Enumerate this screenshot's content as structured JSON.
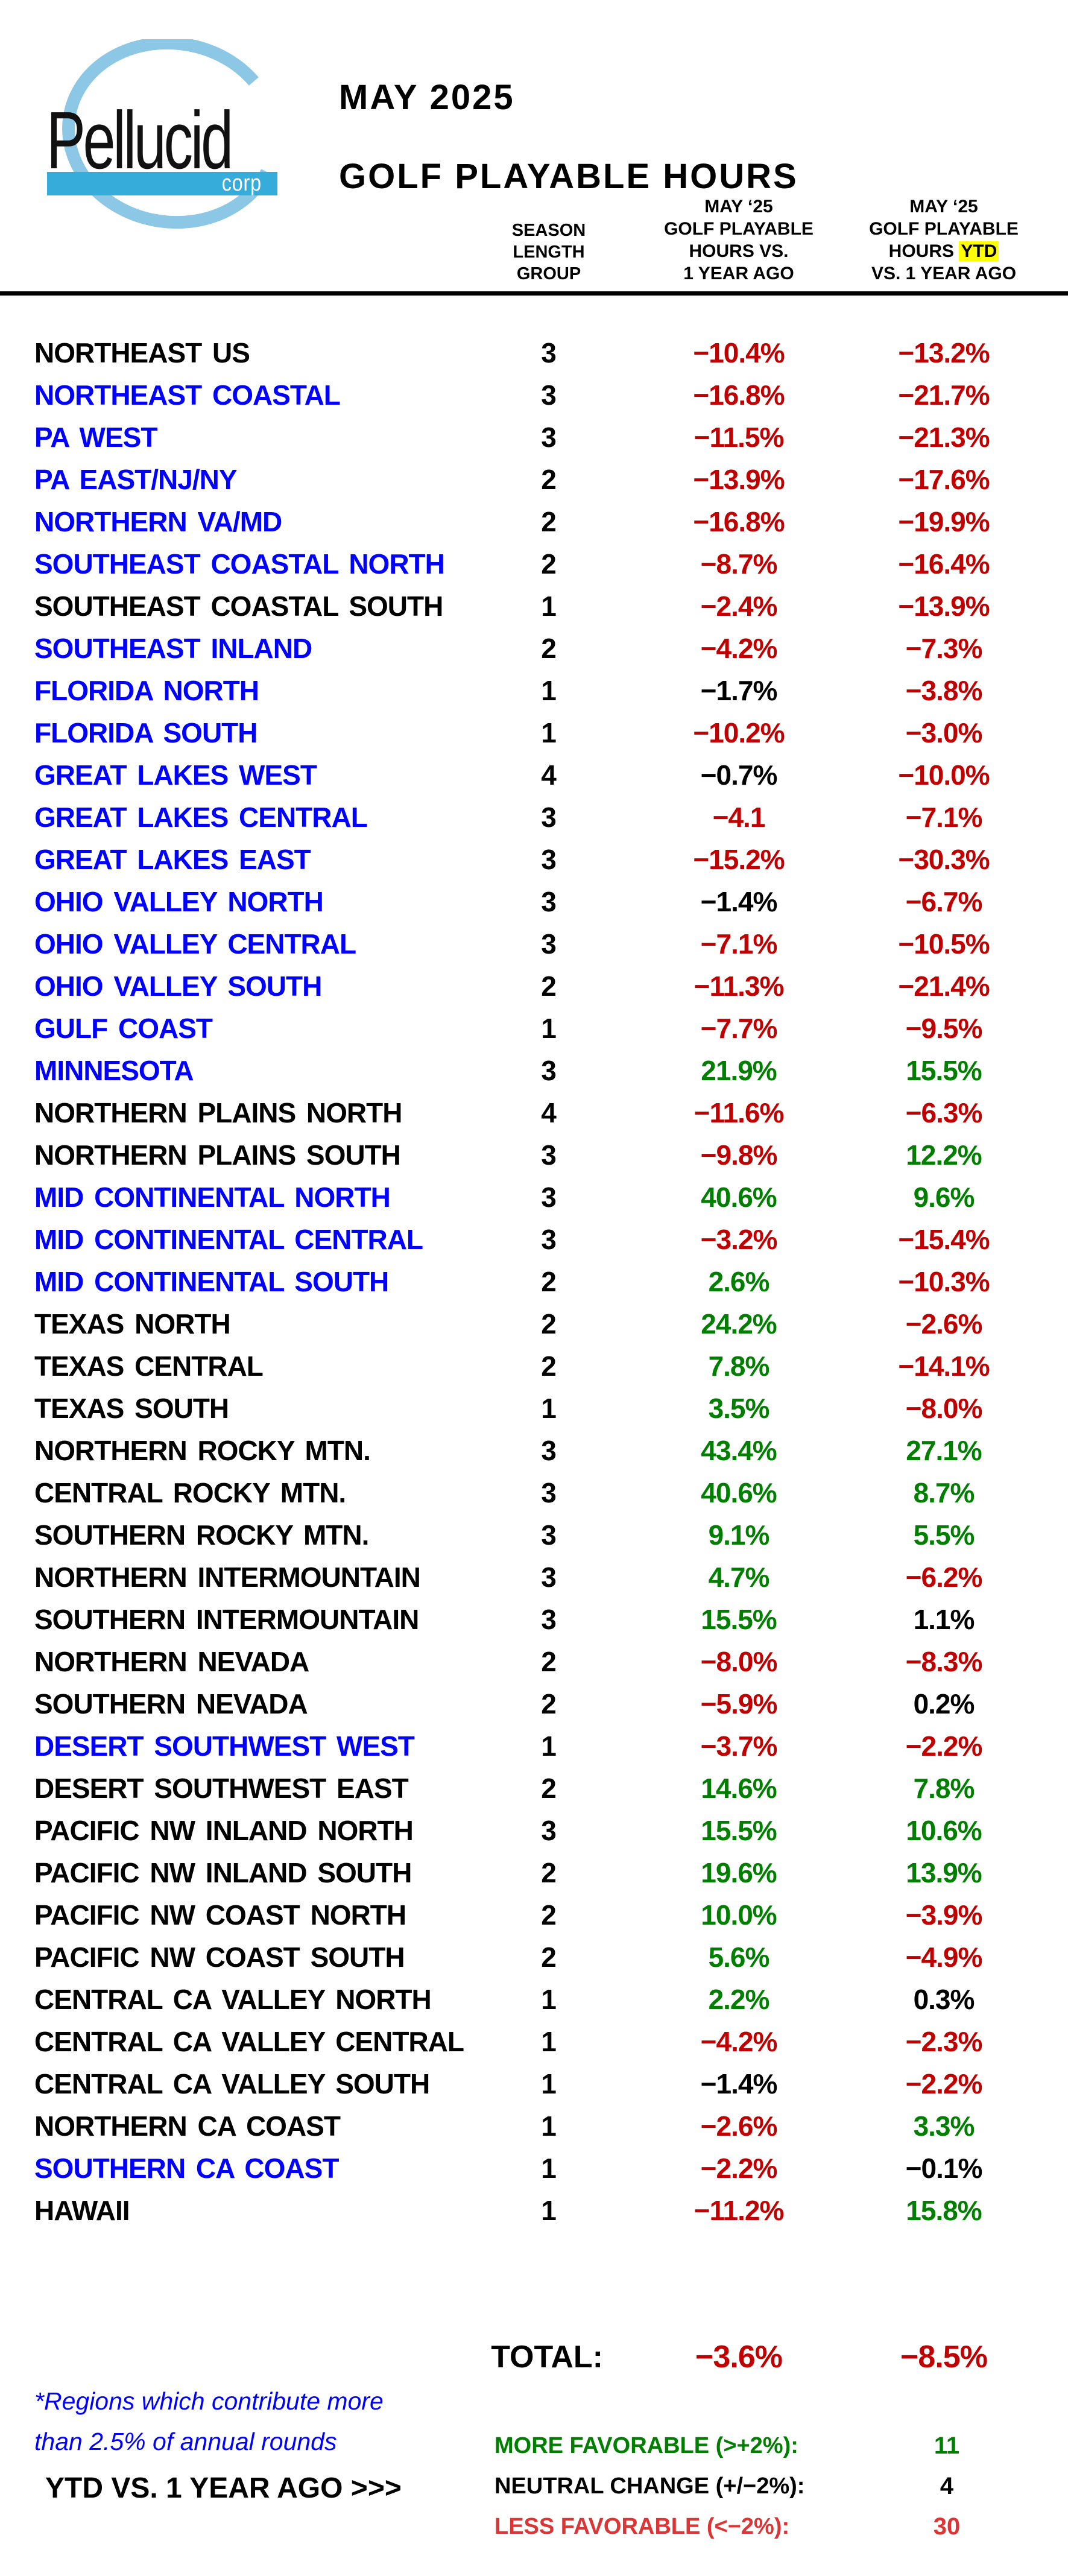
{
  "logo": {
    "brand": "Pellucid",
    "suffix": "corp"
  },
  "title": {
    "line1": "MAY 2025",
    "line2": "GOLF PLAYABLE HOURS"
  },
  "headers": {
    "season": [
      "SEASON",
      "LENGTH",
      "GROUP"
    ],
    "col1": [
      "MAY ‘25",
      "GOLF PLAYABLE",
      "HOURS VS.",
      "1 YEAR AGO"
    ],
    "col2_line1": "MAY ‘25",
    "col2_line2": "GOLF PLAYABLE",
    "col2_line3_pre": "HOURS ",
    "col2_line3_highlight": "YTD",
    "col2_line4": "VS. 1 YEAR AGO"
  },
  "colors": {
    "favorable_green": "#007E00",
    "unfavorable_red": "#C00000",
    "neutral_black": "#000000",
    "region_blue": "#0000FF",
    "legend_red": "#DB3535",
    "logo_bar_blue": "#35ACDA",
    "logo_ring_blue": "#8CC7E6",
    "ytd_highlight_yellow": "#FFFF00"
  },
  "table": {
    "rows": [
      {
        "region": "NORTHEAST  US",
        "blue": false,
        "group": "3",
        "mv": "−10.4%",
        "mc": "r",
        "yv": "−13.2%",
        "yc": "r"
      },
      {
        "region": "NORTHEAST COASTAL",
        "blue": true,
        "group": "3",
        "mv": "−16.8%",
        "mc": "r",
        "yv": "−21.7%",
        "yc": "r"
      },
      {
        "region": "PA WEST",
        "blue": true,
        "group": "3",
        "mv": "−11.5%",
        "mc": "r",
        "yv": "−21.3%",
        "yc": "r"
      },
      {
        "region": "PA EAST/NJ/NY",
        "blue": true,
        "group": "2",
        "mv": "−13.9%",
        "mc": "r",
        "yv": "−17.6%",
        "yc": "r"
      },
      {
        "region": "NORTHERN VA/MD",
        "blue": true,
        "group": "2",
        "mv": "−16.8%",
        "mc": "r",
        "yv": "−19.9%",
        "yc": "r"
      },
      {
        "region": "SOUTHEAST COASTAL NORTH",
        "blue": true,
        "group": "2",
        "mv": "−8.7%",
        "mc": "r",
        "yv": "−16.4%",
        "yc": "r"
      },
      {
        "region": "SOUTHEAST COASTAL SOUTH",
        "blue": false,
        "group": "1",
        "mv": "−2.4%",
        "mc": "r",
        "yv": "−13.9%",
        "yc": "r"
      },
      {
        "region": "SOUTHEAST INLAND",
        "blue": true,
        "group": "2",
        "mv": "−4.2%",
        "mc": "r",
        "yv": "−7.3%",
        "yc": "r"
      },
      {
        "region": "FLORIDA NORTH",
        "blue": true,
        "group": "1",
        "mv": "−1.7%",
        "mc": "k",
        "yv": "−3.8%",
        "yc": "r"
      },
      {
        "region": "FLORIDA SOUTH",
        "blue": true,
        "group": "1",
        "mv": "−10.2%",
        "mc": "r",
        "yv": "−3.0%",
        "yc": "r"
      },
      {
        "region": "GREAT LAKES WEST",
        "blue": true,
        "group": "4",
        "mv": "−0.7%",
        "mc": "k",
        "yv": "−10.0%",
        "yc": "r"
      },
      {
        "region": "GREAT LAKES CENTRAL",
        "blue": true,
        "group": "3",
        "mv": "−4.1",
        "mc": "r",
        "yv": "−7.1%",
        "yc": "r"
      },
      {
        "region": "GREAT LAKES EAST",
        "blue": true,
        "group": "3",
        "mv": "−15.2%",
        "mc": "r",
        "yv": "−30.3%",
        "yc": "r"
      },
      {
        "region": "OHIO VALLEY NORTH",
        "blue": true,
        "group": "3",
        "mv": "−1.4%",
        "mc": "k",
        "yv": "−6.7%",
        "yc": "r"
      },
      {
        "region": "OHIO VALLEY CENTRAL",
        "blue": true,
        "group": "3",
        "mv": "−7.1%",
        "mc": "r",
        "yv": "−10.5%",
        "yc": "r"
      },
      {
        "region": "OHIO VALLEY SOUTH",
        "blue": true,
        "group": "2",
        "mv": "−11.3%",
        "mc": "r",
        "yv": "−21.4%",
        "yc": "r"
      },
      {
        "region": "GULF COAST",
        "blue": true,
        "group": "1",
        "mv": "−7.7%",
        "mc": "r",
        "yv": "−9.5%",
        "yc": "r"
      },
      {
        "region": "MINNESOTA",
        "blue": true,
        "group": "3",
        "mv": "21.9%",
        "mc": "g",
        "yv": "15.5%",
        "yc": "g"
      },
      {
        "region": "NORTHERN PLAINS NORTH",
        "blue": false,
        "group": "4",
        "mv": "−11.6%",
        "mc": "r",
        "yv": "−6.3%",
        "yc": "r"
      },
      {
        "region": "NORTHERN PLAINS SOUTH",
        "blue": false,
        "group": "3",
        "mv": "−9.8%",
        "mc": "r",
        "yv": "12.2%",
        "yc": "g"
      },
      {
        "region": "MID CONTINENTAL NORTH",
        "blue": true,
        "group": "3",
        "mv": "40.6%",
        "mc": "g",
        "yv": "9.6%",
        "yc": "g"
      },
      {
        "region": "MID CONTINENTAL CENTRAL",
        "blue": true,
        "group": "3",
        "mv": "−3.2%",
        "mc": "r",
        "yv": "−15.4%",
        "yc": "r"
      },
      {
        "region": "MID CONTINENTAL SOUTH",
        "blue": true,
        "group": "2",
        "mv": "2.6%",
        "mc": "g",
        "yv": "−10.3%",
        "yc": "r"
      },
      {
        "region": "TEXAS NORTH",
        "blue": false,
        "group": "2",
        "mv": "24.2%",
        "mc": "g",
        "yv": "−2.6%",
        "yc": "r"
      },
      {
        "region": "TEXAS CENTRAL",
        "blue": false,
        "group": "2",
        "mv": "7.8%",
        "mc": "g",
        "yv": "−14.1%",
        "yc": "r"
      },
      {
        "region": "TEXAS SOUTH",
        "blue": false,
        "group": "1",
        "mv": "3.5%",
        "mc": "g",
        "yv": "−8.0%",
        "yc": "r"
      },
      {
        "region": "NORTHERN ROCKY MTN.",
        "blue": false,
        "group": "3",
        "mv": "43.4%",
        "mc": "g",
        "yv": "27.1%",
        "yc": "g"
      },
      {
        "region": "CENTRAL ROCKY MTN.",
        "blue": false,
        "group": "3",
        "mv": "40.6%",
        "mc": "g",
        "yv": "8.7%",
        "yc": "g"
      },
      {
        "region": "SOUTHERN ROCKY MTN.",
        "blue": false,
        "group": "3",
        "mv": "9.1%",
        "mc": "g",
        "yv": "5.5%",
        "yc": "g"
      },
      {
        "region": "NORTHERN INTERMOUNTAIN",
        "blue": false,
        "group": "3",
        "mv": "4.7%",
        "mc": "g",
        "yv": "−6.2%",
        "yc": "r"
      },
      {
        "region": "SOUTHERN INTERMOUNTAIN",
        "blue": false,
        "group": "3",
        "mv": "15.5%",
        "mc": "g",
        "yv": "1.1%",
        "yc": "k"
      },
      {
        "region": "NORTHERN NEVADA",
        "blue": false,
        "group": "2",
        "mv": "−8.0%",
        "mc": "r",
        "yv": "−8.3%",
        "yc": "r"
      },
      {
        "region": "SOUTHERN NEVADA",
        "blue": false,
        "group": "2",
        "mv": "−5.9%",
        "mc": "r",
        "yv": "0.2%",
        "yc": "k"
      },
      {
        "region": "DESERT SOUTHWEST WEST",
        "blue": true,
        "group": "1",
        "mv": "−3.7%",
        "mc": "r",
        "yv": "−2.2%",
        "yc": "r"
      },
      {
        "region": "DESERT SOUTHWEST EAST",
        "blue": false,
        "group": "2",
        "mv": "14.6%",
        "mc": "g",
        "yv": "7.8%",
        "yc": "g"
      },
      {
        "region": "PACIFIC NW INLAND NORTH",
        "blue": false,
        "group": "3",
        "mv": "15.5%",
        "mc": "g",
        "yv": "10.6%",
        "yc": "g"
      },
      {
        "region": "PACIFIC NW INLAND SOUTH",
        "blue": false,
        "group": "2",
        "mv": "19.6%",
        "mc": "g",
        "yv": "13.9%",
        "yc": "g"
      },
      {
        "region": "PACIFIC NW COAST NORTH",
        "blue": false,
        "group": "2",
        "mv": "10.0%",
        "mc": "g",
        "yv": "−3.9%",
        "yc": "r"
      },
      {
        "region": "PACIFIC NW COAST SOUTH",
        "blue": false,
        "group": "2",
        "mv": "5.6%",
        "mc": "g",
        "yv": "−4.9%",
        "yc": "r"
      },
      {
        "region": "CENTRAL CA VALLEY NORTH",
        "blue": false,
        "group": "1",
        "mv": "2.2%",
        "mc": "g",
        "yv": "0.3%",
        "yc": "k"
      },
      {
        "region": "CENTRAL CA VALLEY CENTRAL",
        "blue": false,
        "group": "1",
        "mv": "−4.2%",
        "mc": "r",
        "yv": "−2.3%",
        "yc": "r"
      },
      {
        "region": "CENTRAL CA VALLEY SOUTH",
        "blue": false,
        "group": "1",
        "mv": "−1.4%",
        "mc": "k",
        "yv": "−2.2%",
        "yc": "r"
      },
      {
        "region": "NORTHERN CA COAST",
        "blue": false,
        "group": "1",
        "mv": "−2.6%",
        "mc": "r",
        "yv": "3.3%",
        "yc": "g"
      },
      {
        "region": "SOUTHERN CA COAST",
        "blue": true,
        "group": "1",
        "mv": "−2.2%",
        "mc": "r",
        "yv": "−0.1%",
        "yc": "k"
      },
      {
        "region": "HAWAII",
        "blue": false,
        "group": "1",
        "mv": "−11.2%",
        "mc": "r",
        "yv": "15.8%",
        "yc": "g"
      }
    ]
  },
  "total": {
    "label": "TOTAL:",
    "month": "−3.6%",
    "ytd": "−8.5%"
  },
  "footnote": {
    "line1": "*Regions which contribute more",
    "line2": "than 2.5% of annual rounds"
  },
  "pointer": "YTD VS. 1 YEAR AGO >>>",
  "legend": {
    "items": [
      {
        "label": "MORE FAVORABLE (>+2%):",
        "count": "11",
        "color": "green"
      },
      {
        "label": "NEUTRAL CHANGE (+/−2%):",
        "count": "4",
        "color": "black"
      },
      {
        "label": "LESS FAVORABLE (<−2%):",
        "count": "30",
        "color": "red"
      }
    ]
  }
}
